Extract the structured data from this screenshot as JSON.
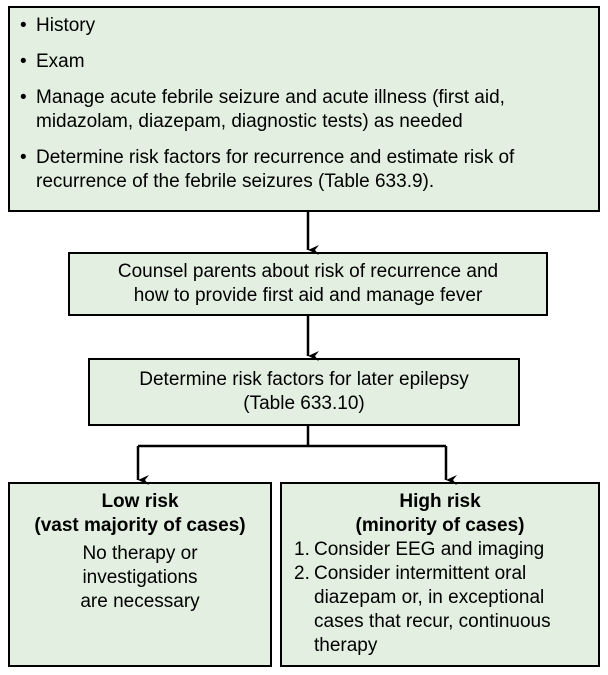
{
  "box1": {
    "items": [
      "History",
      "Exam",
      [
        "Manage acute febrile seizure and acute illness (first aid,",
        "midazolam, diazepam, diagnostic tests) as needed"
      ],
      [
        "Determine risk factors for recurrence and estimate risk of",
        "recurrence of the febrile seizures (Table 633.9)."
      ]
    ]
  },
  "box2": {
    "lines": [
      "Counsel parents about risk of recurrence and",
      "how to provide first aid and manage fever"
    ]
  },
  "box3": {
    "lines": [
      "Determine risk factors for later epilepsy",
      "(Table 633.10)"
    ]
  },
  "low_risk": {
    "title_lines": [
      "Low risk",
      "(vast majority of cases)"
    ],
    "body_lines": [
      "No therapy or",
      "investigations",
      "are necessary"
    ]
  },
  "high_risk": {
    "title_lines": [
      "High risk",
      "(minority of cases)"
    ],
    "items": [
      {
        "num": "1.",
        "lines": [
          "Consider EEG and imaging"
        ]
      },
      {
        "num": "2.",
        "lines": [
          "Consider intermittent oral",
          "diazepam or, in exceptional",
          "cases that recur, continuous",
          "therapy"
        ]
      }
    ]
  }
}
